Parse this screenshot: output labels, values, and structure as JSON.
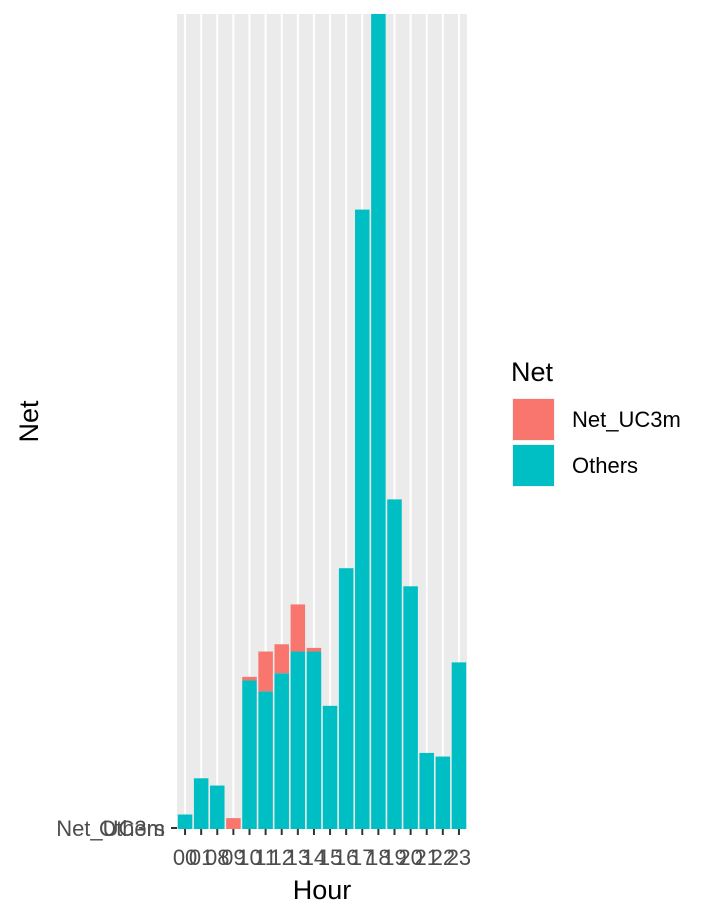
{
  "chart_data": {
    "type": "bar",
    "stacked": true,
    "xlabel": "Hour",
    "ylabel": "Net",
    "categories": [
      "00",
      "01",
      "08",
      "09",
      "10",
      "11",
      "12",
      "13",
      "14",
      "15",
      "16",
      "17",
      "18",
      "19",
      "20",
      "21",
      "22",
      "23"
    ],
    "series": [
      {
        "name": "Others",
        "color": "#00BFC4",
        "values": [
          2,
          7,
          6,
          0,
          20.5,
          19,
          21.5,
          24.5,
          24.5,
          17,
          36,
          85.5,
          112.5,
          45.5,
          33.5,
          10.5,
          10,
          23
        ]
      },
      {
        "name": "Net_UC3m",
        "color": "#F8766D",
        "values": [
          0,
          0,
          0,
          1.5,
          0.5,
          5.5,
          4,
          6.5,
          0.5,
          0,
          0,
          0,
          0,
          0,
          0,
          0,
          0,
          0
        ]
      }
    ],
    "y_ticks": [
      "Net_UC3m",
      "Others"
    ],
    "ylim": [
      0,
      112.5
    ],
    "grid": true,
    "panel_background": "#EBEBEB",
    "legend": {
      "title": "Net",
      "position": "right",
      "entries": [
        {
          "label": "Net_UC3m",
          "color": "#F8766D"
        },
        {
          "label": "Others",
          "color": "#00BFC4"
        }
      ]
    }
  }
}
